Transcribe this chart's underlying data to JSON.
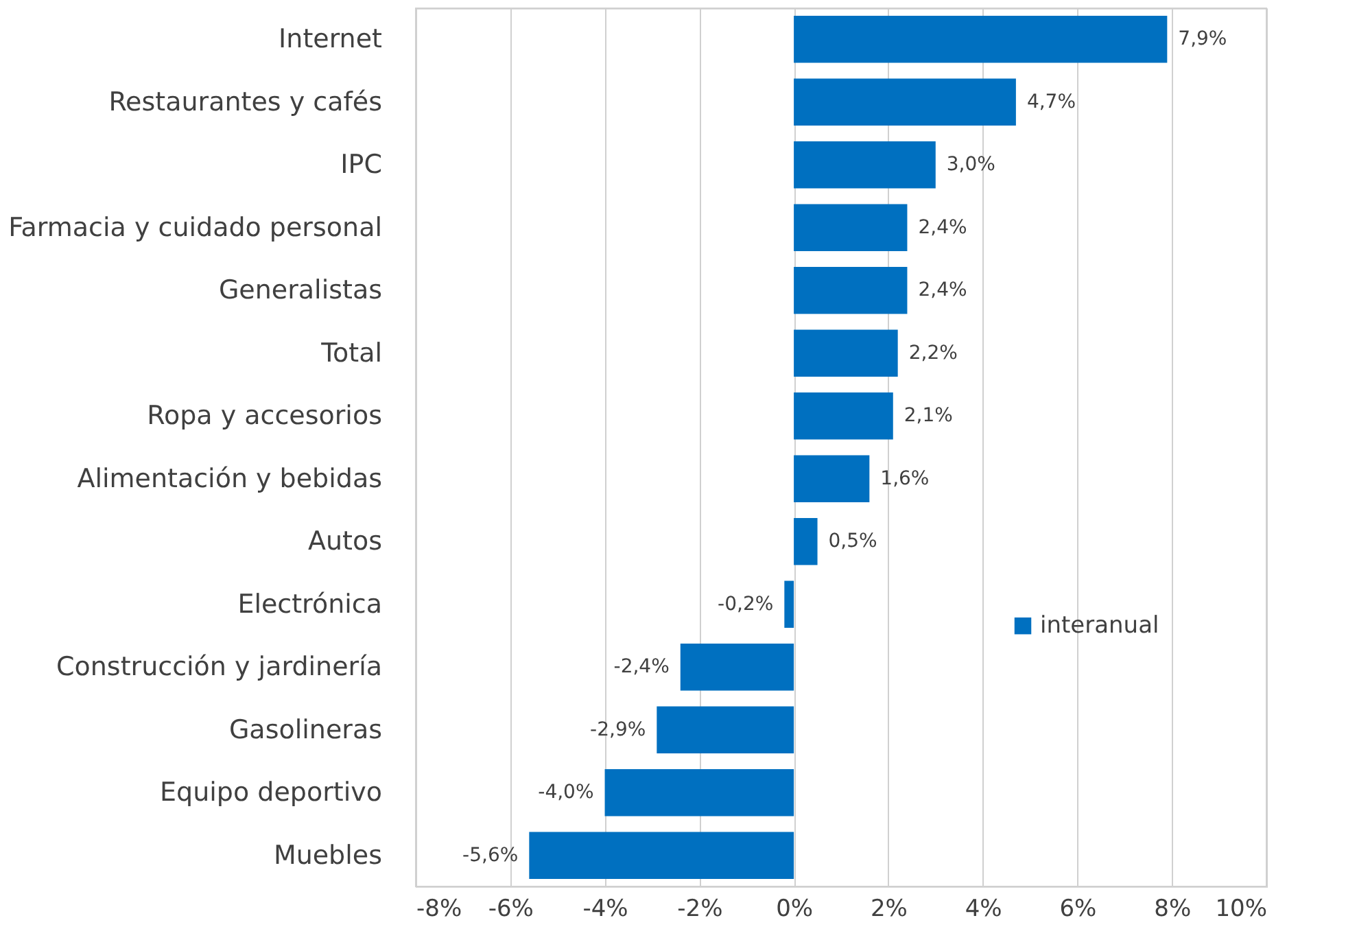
{
  "chart_data": {
    "type": "bar",
    "orientation": "horizontal",
    "categories": [
      "Internet",
      "Restaurantes y cafés",
      "IPC",
      "Farmacia y cuidado personal",
      "Generalistas",
      "Total",
      "Ropa y accesorios",
      "Alimentación y bebidas",
      "Autos",
      "Electrónica",
      "Construcción y jardinería",
      "Gasolineras",
      "Equipo deportivo",
      "Muebles"
    ],
    "series": [
      {
        "name": "interanual",
        "color": "#0070c0",
        "values": [
          7.9,
          4.7,
          3.0,
          2.4,
          2.4,
          2.2,
          2.1,
          1.6,
          0.5,
          -0.2,
          -2.4,
          -2.9,
          -4.0,
          -5.6
        ],
        "value_labels": [
          "7,9%",
          "4,7%",
          "3,0%",
          "2,4%",
          "2,4%",
          "2,2%",
          "2,1%",
          "1,6%",
          "0,5%",
          "-0,2%",
          "-2,4%",
          "-2,9%",
          "-4,0%",
          "-5,6%"
        ]
      }
    ],
    "xlim": [
      -8,
      10
    ],
    "xticks": [
      {
        "value": -8,
        "label": "-8%"
      },
      {
        "value": -6,
        "label": "-6%"
      },
      {
        "value": -4,
        "label": "-4%"
      },
      {
        "value": -2,
        "label": "-2%"
      },
      {
        "value": 0,
        "label": "0%"
      },
      {
        "value": 2,
        "label": "2%"
      },
      {
        "value": 4,
        "label": "4%"
      },
      {
        "value": 6,
        "label": "6%"
      },
      {
        "value": 8,
        "label": "8%"
      },
      {
        "value": 10,
        "label": "10%"
      }
    ],
    "grid": "x",
    "legend": "right"
  }
}
